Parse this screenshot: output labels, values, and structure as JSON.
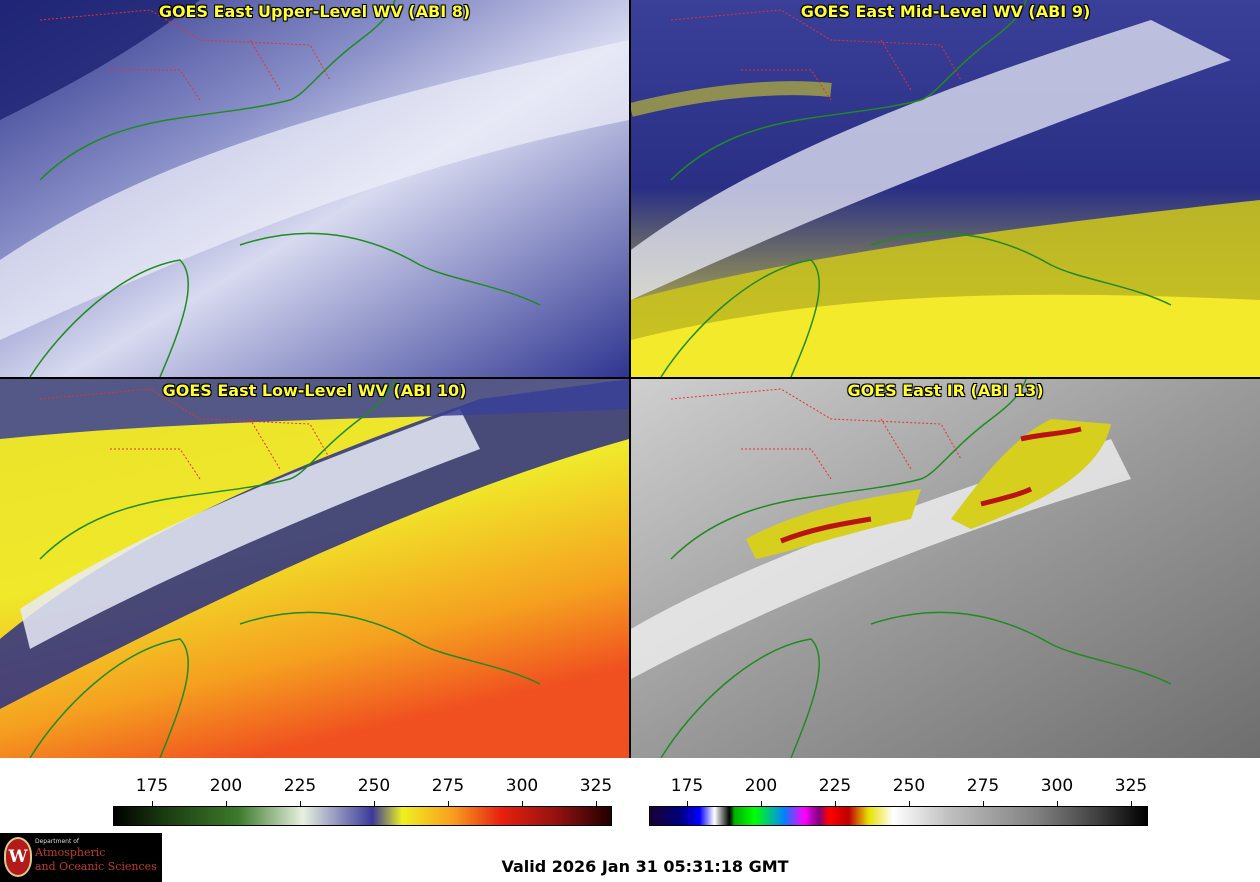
{
  "panels": [
    {
      "title": "GOES East Upper-Level WV (ABI 8)"
    },
    {
      "title": "GOES East Mid-Level WV (ABI 9)"
    },
    {
      "title": "GOES East Low-Level WV (ABI 10)"
    },
    {
      "title": "GOES East IR (ABI 13)"
    }
  ],
  "colorbars": [
    {
      "ticks": [
        "175",
        "200",
        "225",
        "250",
        "275",
        "300",
        "325"
      ]
    },
    {
      "ticks": [
        "175",
        "200",
        "225",
        "250",
        "275",
        "300",
        "325"
      ]
    }
  ],
  "footer": {
    "valid_time": "Valid 2026 Jan 31 05:31:18 GMT",
    "logo_department": "Department of",
    "logo_line1": "Atmospheric",
    "logo_line2": "and Oceanic Sciences",
    "logo_mark": "W"
  },
  "colors": {
    "coastline": "#1e8c1e",
    "state_borders": "#e83030",
    "title_text": "#ffff33"
  }
}
